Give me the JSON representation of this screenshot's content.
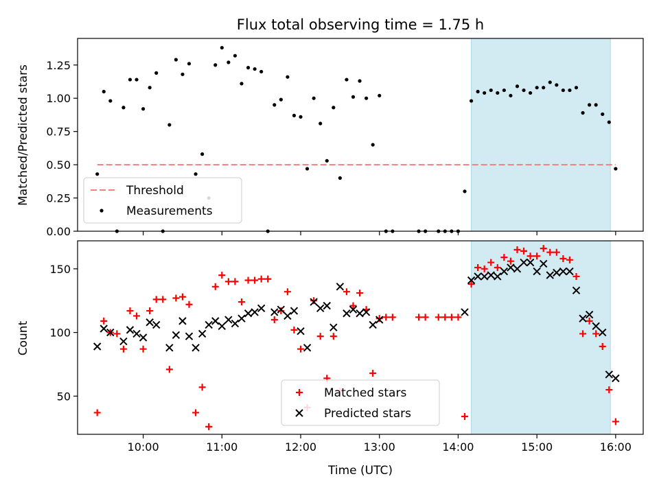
{
  "colors": {
    "threshold": "#f08080",
    "measurement": "#000000",
    "matched": "#ff0000",
    "predicted": "#000000",
    "highlight": "#add8e6"
  },
  "chart_data": [
    {
      "type": "scatter",
      "title": "Flux total observing time = 1.75 h",
      "xlabel": "",
      "ylabel": "Matched/Predicted stars",
      "xlim": [
        "09:10",
        "16:21"
      ],
      "ylim": [
        0,
        1.45
      ],
      "yticks": [
        0.0,
        0.25,
        0.5,
        0.75,
        1.0,
        1.25
      ],
      "ytick_labels": [
        "0.00",
        "0.25",
        "0.50",
        "0.75",
        "1.00",
        "1.25"
      ],
      "highlight_span": [
        "14:10",
        "15:56"
      ],
      "threshold": {
        "name": "Threshold",
        "value": 0.5,
        "x_range": [
          "09:25",
          "16:00"
        ],
        "style": "dashed"
      },
      "legend": {
        "position": "lower-left",
        "entries": [
          "Threshold",
          "Measurements"
        ]
      },
      "series": [
        {
          "name": "Measurements",
          "marker": "dot",
          "points": [
            [
              "09:25",
              0.43
            ],
            [
              "09:30",
              1.05
            ],
            [
              "09:35",
              0.98
            ],
            [
              "09:40",
              0.0
            ],
            [
              "09:45",
              0.93
            ],
            [
              "09:50",
              1.14
            ],
            [
              "09:55",
              1.14
            ],
            [
              "10:00",
              0.92
            ],
            [
              "10:05",
              1.08
            ],
            [
              "10:10",
              1.19
            ],
            [
              "10:15",
              0.0
            ],
            [
              "10:20",
              0.8
            ],
            [
              "10:25",
              1.29
            ],
            [
              "10:30",
              1.18
            ],
            [
              "10:35",
              1.26
            ],
            [
              "10:40",
              0.43
            ],
            [
              "10:45",
              0.58
            ],
            [
              "10:50",
              0.25
            ],
            [
              "10:55",
              1.25
            ],
            [
              "11:00",
              1.38
            ],
            [
              "11:05",
              1.27
            ],
            [
              "11:10",
              1.32
            ],
            [
              "11:15",
              1.11
            ],
            [
              "11:20",
              1.23
            ],
            [
              "11:25",
              1.22
            ],
            [
              "11:30",
              1.2
            ],
            [
              "11:35",
              0.0
            ],
            [
              "11:40",
              0.95
            ],
            [
              "11:45",
              0.99
            ],
            [
              "11:50",
              1.16
            ],
            [
              "11:55",
              0.87
            ],
            [
              "12:00",
              0.86
            ],
            [
              "12:05",
              0.47
            ],
            [
              "12:10",
              1.0
            ],
            [
              "12:15",
              0.81
            ],
            [
              "12:20",
              0.53
            ],
            [
              "12:25",
              0.93
            ],
            [
              "12:30",
              0.4
            ],
            [
              "12:35",
              1.14
            ],
            [
              "12:40",
              1.01
            ],
            [
              "12:45",
              1.13
            ],
            [
              "12:50",
              1.0
            ],
            [
              "12:55",
              0.65
            ],
            [
              "13:00",
              1.02
            ],
            [
              "13:05",
              0.0
            ],
            [
              "13:10",
              0.0
            ],
            [
              "13:30",
              0.0
            ],
            [
              "13:35",
              0.0
            ],
            [
              "13:45",
              0.0
            ],
            [
              "13:50",
              0.0
            ],
            [
              "13:55",
              0.0
            ],
            [
              "14:00",
              0.0
            ],
            [
              "14:05",
              0.3
            ],
            [
              "14:10",
              0.98
            ],
            [
              "14:15",
              1.05
            ],
            [
              "14:20",
              1.04
            ],
            [
              "14:25",
              1.06
            ],
            [
              "14:30",
              1.04
            ],
            [
              "14:35",
              1.06
            ],
            [
              "14:40",
              1.02
            ],
            [
              "14:45",
              1.09
            ],
            [
              "14:50",
              1.06
            ],
            [
              "14:55",
              1.04
            ],
            [
              "15:00",
              1.08
            ],
            [
              "15:05",
              1.08
            ],
            [
              "15:10",
              1.12
            ],
            [
              "15:15",
              1.1
            ],
            [
              "15:20",
              1.06
            ],
            [
              "15:25",
              1.06
            ],
            [
              "15:30",
              1.08
            ],
            [
              "15:35",
              0.89
            ],
            [
              "15:40",
              0.95
            ],
            [
              "15:45",
              0.95
            ],
            [
              "15:50",
              0.88
            ],
            [
              "15:55",
              0.82
            ],
            [
              "16:00",
              0.47
            ]
          ]
        }
      ]
    },
    {
      "type": "scatter",
      "title": "",
      "xlabel": "Time (UTC)",
      "ylabel": "Count",
      "xlim": [
        "09:10",
        "16:21"
      ],
      "ylim": [
        20,
        172
      ],
      "yticks": [
        50,
        100,
        150
      ],
      "ytick_labels": [
        "50",
        "100",
        "150"
      ],
      "xticks": [
        "10:00",
        "11:00",
        "12:00",
        "13:00",
        "14:00",
        "15:00",
        "16:00"
      ],
      "xtick_labels": [
        "10:00",
        "11:00",
        "12:00",
        "13:00",
        "14:00",
        "15:00",
        "16:00"
      ],
      "highlight_span": [
        "14:10",
        "15:56"
      ],
      "legend": {
        "position": "lower-center",
        "entries": [
          "Matched stars",
          "Predicted stars"
        ]
      },
      "series": [
        {
          "name": "Matched stars",
          "marker": "plus",
          "points": [
            [
              "09:25",
              37
            ],
            [
              "09:30",
              109
            ],
            [
              "09:35",
              100
            ],
            [
              "09:40",
              99
            ],
            [
              "09:45",
              87
            ],
            [
              "09:50",
              117
            ],
            [
              "09:55",
              113
            ],
            [
              "10:00",
              87
            ],
            [
              "10:05",
              117
            ],
            [
              "10:10",
              126
            ],
            [
              "10:15",
              126
            ],
            [
              "10:20",
              71
            ],
            [
              "10:25",
              127
            ],
            [
              "10:30",
              128
            ],
            [
              "10:35",
              122
            ],
            [
              "10:40",
              37
            ],
            [
              "10:45",
              57
            ],
            [
              "10:50",
              26
            ],
            [
              "10:55",
              136
            ],
            [
              "11:00",
              145
            ],
            [
              "11:05",
              140
            ],
            [
              "11:10",
              140
            ],
            [
              "11:15",
              124
            ],
            [
              "11:20",
              141
            ],
            [
              "11:25",
              141
            ],
            [
              "11:30",
              142
            ],
            [
              "11:35",
              142
            ],
            [
              "11:40",
              110
            ],
            [
              "11:45",
              117
            ],
            [
              "11:50",
              132
            ],
            [
              "11:55",
              102
            ],
            [
              "12:00",
              87
            ],
            [
              "12:05",
              41
            ],
            [
              "12:10",
              125
            ],
            [
              "12:15",
              97
            ],
            [
              "12:20",
              64
            ],
            [
              "12:25",
              97
            ],
            [
              "12:30",
              54
            ],
            [
              "12:35",
              132
            ],
            [
              "12:40",
              121
            ],
            [
              "12:45",
              131
            ],
            [
              "12:50",
              118
            ],
            [
              "12:55",
              68
            ],
            [
              "13:00",
              111
            ],
            [
              "13:05",
              112
            ],
            [
              "13:10",
              112
            ],
            [
              "13:30",
              112
            ],
            [
              "13:35",
              112
            ],
            [
              "13:45",
              112
            ],
            [
              "13:50",
              112
            ],
            [
              "13:55",
              112
            ],
            [
              "14:00",
              112
            ],
            [
              "14:05",
              34
            ],
            [
              "14:10",
              138
            ],
            [
              "14:15",
              151
            ],
            [
              "14:20",
              150
            ],
            [
              "14:25",
              155
            ],
            [
              "14:30",
              151
            ],
            [
              "14:35",
              159
            ],
            [
              "14:40",
              156
            ],
            [
              "14:45",
              165
            ],
            [
              "14:50",
              164
            ],
            [
              "14:55",
              160
            ],
            [
              "15:00",
              160
            ],
            [
              "15:05",
              166
            ],
            [
              "15:10",
              163
            ],
            [
              "15:15",
              163
            ],
            [
              "15:20",
              158
            ],
            [
              "15:25",
              157
            ],
            [
              "15:30",
              144
            ],
            [
              "15:35",
              99
            ],
            [
              "15:40",
              109
            ],
            [
              "15:45",
              99
            ],
            [
              "15:50",
              89
            ],
            [
              "15:55",
              55
            ],
            [
              "16:00",
              30
            ]
          ]
        },
        {
          "name": "Predicted stars",
          "marker": "x",
          "points": [
            [
              "09:25",
              89
            ],
            [
              "09:30",
              103
            ],
            [
              "09:35",
              100
            ],
            [
              "09:45",
              93
            ],
            [
              "09:50",
              102
            ],
            [
              "09:55",
              99
            ],
            [
              "10:00",
              96
            ],
            [
              "10:05",
              108
            ],
            [
              "10:10",
              106
            ],
            [
              "10:20",
              88
            ],
            [
              "10:25",
              98
            ],
            [
              "10:30",
              109
            ],
            [
              "10:35",
              97
            ],
            [
              "10:40",
              88
            ],
            [
              "10:45",
              99
            ],
            [
              "10:50",
              106
            ],
            [
              "10:55",
              109
            ],
            [
              "11:00",
              105
            ],
            [
              "11:05",
              110
            ],
            [
              "11:10",
              107
            ],
            [
              "11:15",
              111
            ],
            [
              "11:20",
              115
            ],
            [
              "11:25",
              116
            ],
            [
              "11:30",
              119
            ],
            [
              "11:40",
              116
            ],
            [
              "11:45",
              118
            ],
            [
              "11:50",
              113
            ],
            [
              "11:55",
              117
            ],
            [
              "12:00",
              101
            ],
            [
              "12:05",
              88
            ],
            [
              "12:10",
              124
            ],
            [
              "12:15",
              119
            ],
            [
              "12:20",
              121
            ],
            [
              "12:25",
              104
            ],
            [
              "12:30",
              136
            ],
            [
              "12:35",
              115
            ],
            [
              "12:40",
              118
            ],
            [
              "12:45",
              115
            ],
            [
              "12:50",
              116
            ],
            [
              "12:55",
              106
            ],
            [
              "13:00",
              110
            ],
            [
              "14:05",
              116
            ],
            [
              "14:10",
              141
            ],
            [
              "14:15",
              144
            ],
            [
              "14:20",
              144
            ],
            [
              "14:25",
              145
            ],
            [
              "14:30",
              144
            ],
            [
              "14:35",
              148
            ],
            [
              "14:40",
              151
            ],
            [
              "14:45",
              150
            ],
            [
              "14:50",
              155
            ],
            [
              "14:55",
              155
            ],
            [
              "15:00",
              148
            ],
            [
              "15:05",
              154
            ],
            [
              "15:10",
              145
            ],
            [
              "15:15",
              147
            ],
            [
              "15:20",
              148
            ],
            [
              "15:25",
              148
            ],
            [
              "15:30",
              133
            ],
            [
              "15:35",
              111
            ],
            [
              "15:40",
              114
            ],
            [
              "15:45",
              105
            ],
            [
              "15:50",
              100
            ],
            [
              "15:55",
              67
            ],
            [
              "16:00",
              64
            ]
          ]
        }
      ]
    }
  ]
}
